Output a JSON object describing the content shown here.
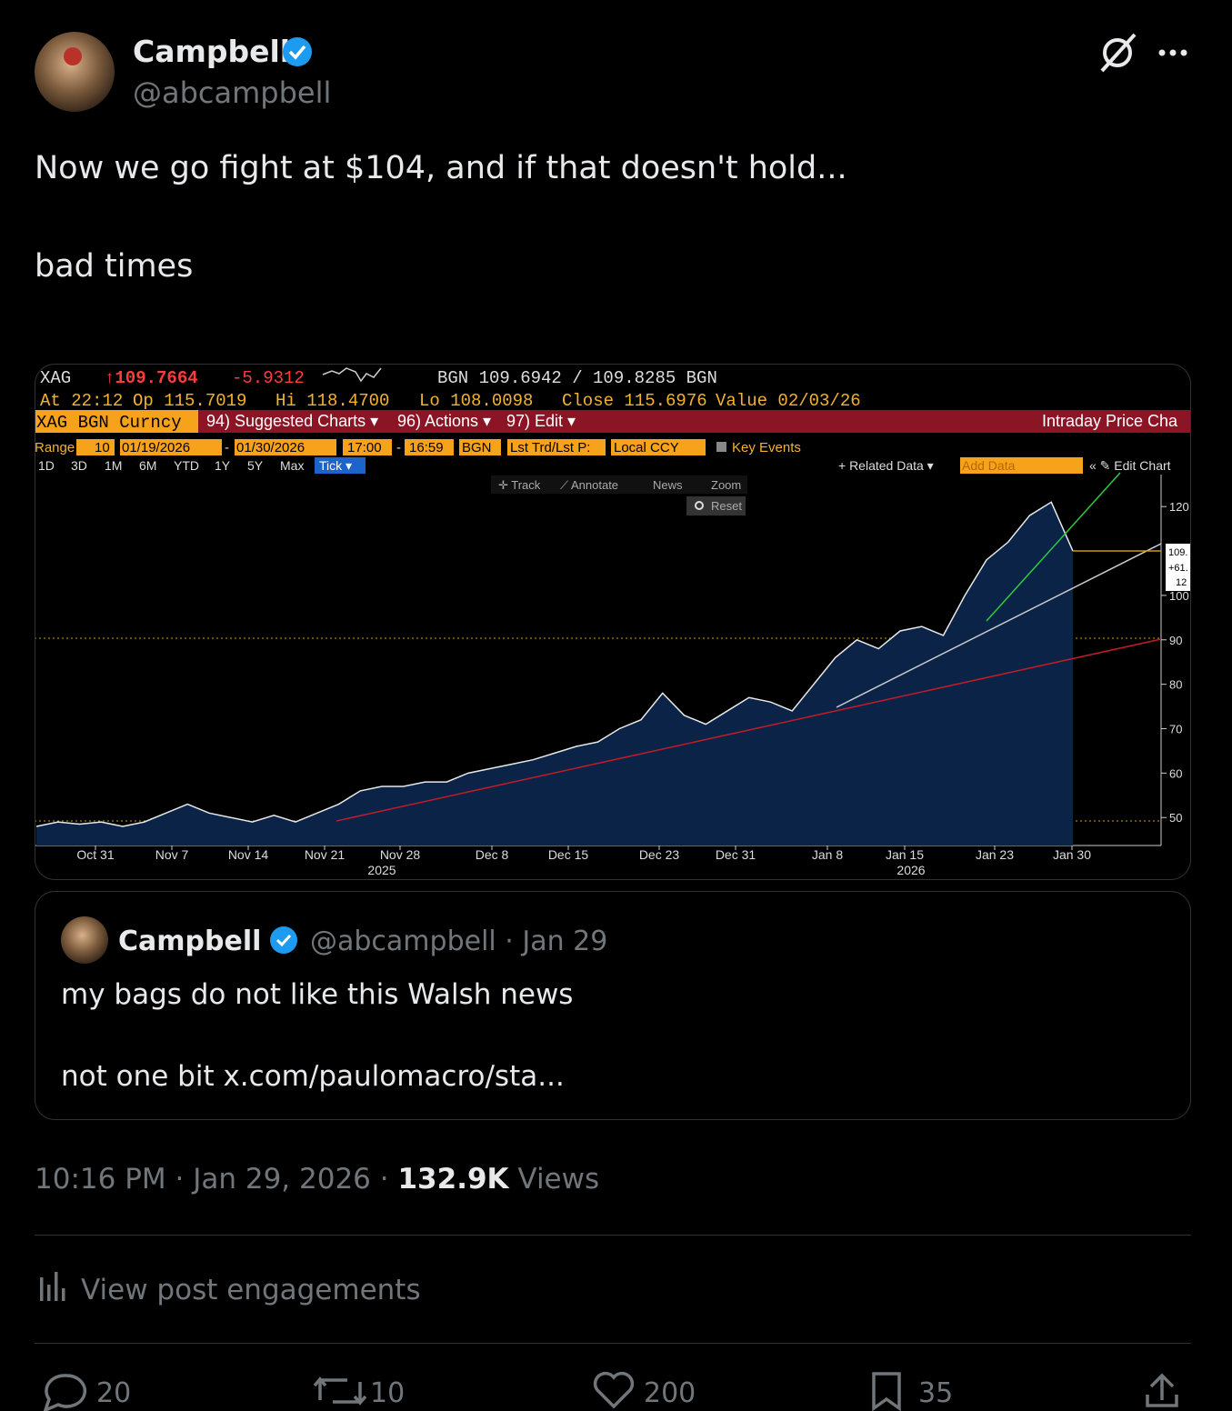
{
  "header": {
    "name": "Campbell",
    "handle": "@abcampbell"
  },
  "post": {
    "lines": [
      "Now we go fight at $104, and if that doesn't hold...",
      "bad times"
    ]
  },
  "image": {
    "quote_row": [
      "XAG",
      "↑109.7664",
      "-5.9312",
      "BGN 109.6942 / 109.8285 BGN"
    ],
    "stats_row": [
      "At 22:12",
      "Op 115.7019",
      "Hi 118.4700",
      "Lo 108.0098",
      "Close 115.6976",
      "Value 02/03/26"
    ],
    "menu_row": [
      "XAG BGN Curncy",
      "94) Suggested Charts ▾",
      "96) Actions ▾",
      "97) Edit ▾",
      "Intraday Price Cha"
    ],
    "range_row": [
      "Range",
      "10",
      "01/19/2026",
      "-",
      "01/30/2026",
      "17:00",
      "-",
      "16:59",
      "BGN",
      "Lst Trd/Lst P:",
      "Local CCY",
      "Key Events"
    ],
    "period_row": [
      "1D",
      "3D",
      "1M",
      "6M",
      "YTD",
      "1Y",
      "5Y",
      "Max",
      "Tick ▾",
      "+ Related Data ▾",
      "Add Data",
      "« ✎ Edit Chart"
    ],
    "tools": [
      "✛ Track",
      "⟋ Annotate",
      "News",
      "Zoom",
      "Reset"
    ],
    "last_label": [
      "109.",
      "+61.",
      "12"
    ],
    "chart": {
      "type": "area",
      "values": [
        48,
        49,
        48.5,
        49,
        48,
        49,
        51,
        53,
        51,
        50,
        49,
        50.5,
        49,
        51,
        53,
        56,
        57,
        57,
        58,
        58,
        60,
        61,
        62,
        63,
        64.5,
        66,
        67,
        70,
        72,
        78,
        73,
        71,
        74,
        77,
        76,
        74,
        80,
        86,
        90,
        88,
        92,
        93,
        91,
        100,
        108,
        112,
        118,
        121,
        110
      ],
      "ylim": [
        43.7,
        127.2
      ],
      "yticks": [
        50,
        60,
        70,
        80,
        90,
        100,
        120
      ],
      "categories": [
        "Oct 31",
        "Nov 7",
        "Nov 14",
        "Nov 21",
        "Nov 28",
        "Dec 8",
        "Dec 15",
        "Dec 23",
        "Dec 31",
        "Jan 8",
        "Jan 15",
        "Jan 23",
        "Jan 30"
      ],
      "years": [
        "2025",
        "2026"
      ]
    }
  },
  "quote": {
    "name": "Campbell",
    "handle": "@abcampbell",
    "separator": "·",
    "date": "Jan 29",
    "lines": [
      "my bags do not like this Walsh news",
      "not one bit x.com/paulomacro/sta..."
    ]
  },
  "meta": {
    "time": "10:16 PM",
    "separator": "·",
    "date": "Jan 29, 2026",
    "views_count": "132.9K",
    "views_label": "Views"
  },
  "engagements": "View post engagements",
  "actions": {
    "replies": 20,
    "reposts": 10,
    "likes": 200,
    "bookmarks": 35
  }
}
